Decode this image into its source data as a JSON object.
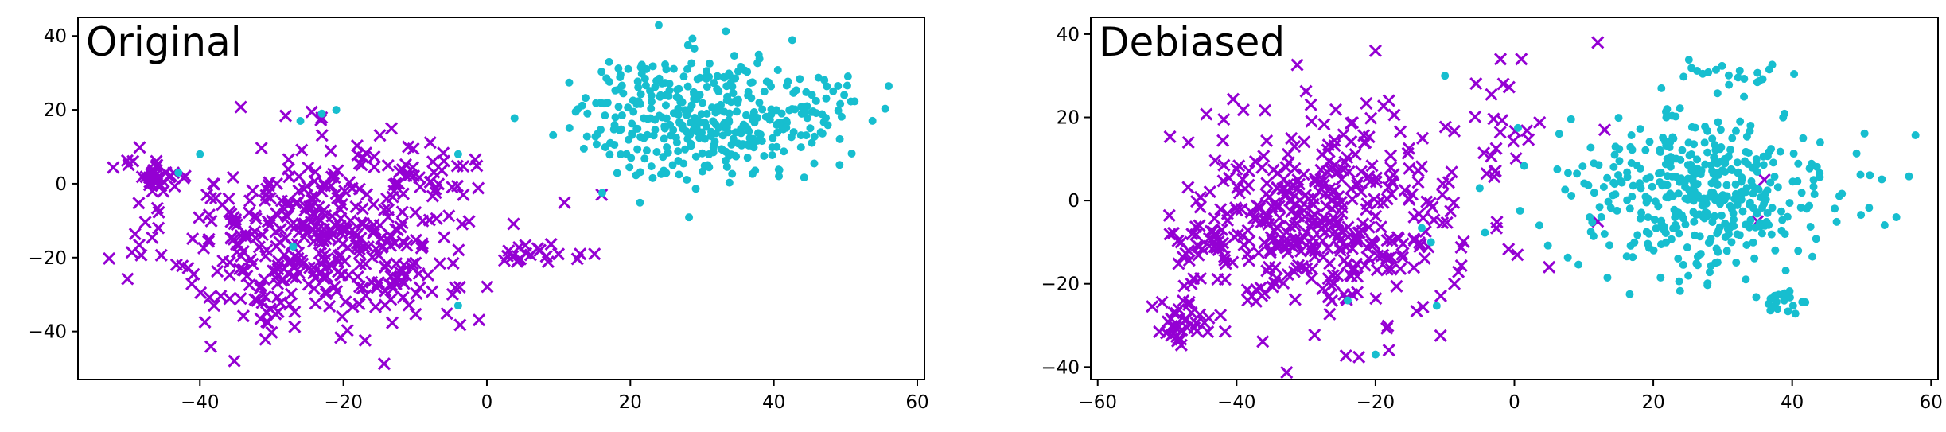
{
  "chart_data": [
    {
      "type": "scatter",
      "title": "Original",
      "xlim": [
        -57,
        61
      ],
      "ylim": [
        -53,
        45
      ],
      "xticks": [
        -40,
        -20,
        0,
        20,
        40,
        60
      ],
      "yticks": [
        -40,
        -20,
        0,
        20,
        40
      ],
      "xtick_labels": [
        "−40",
        "−20",
        "0",
        "20",
        "40",
        "60"
      ],
      "ytick_labels": [
        "−40",
        "−20",
        "0",
        "20",
        "40"
      ],
      "grid": false,
      "series": [
        {
          "marker": "x",
          "color": "#9400d3",
          "clusters": [
            {
              "center": [
                -23,
                -15
              ],
              "spread": [
                14,
                17
              ],
              "count": 430
            },
            {
              "center": [
                -46,
                2
              ],
              "spread": [
                3,
                3
              ],
              "count": 35
            },
            {
              "center": [
                -8,
                5
              ],
              "spread": [
                5,
                6
              ],
              "count": 25
            },
            {
              "center": [
                6,
                -19
              ],
              "spread": [
                3,
                2
              ],
              "count": 20
            }
          ],
          "points": [
            [
              16,
              -3
            ],
            [
              15,
              -19
            ],
            [
              13,
              -19
            ]
          ]
        },
        {
          "marker": "o",
          "color": "#17becf",
          "clusters": [
            {
              "center": [
                30,
                18
              ],
              "spread": [
                12,
                11
              ],
              "count": 380
            },
            {
              "center": [
                47,
                22
              ],
              "spread": [
                4,
                6
              ],
              "count": 30
            }
          ],
          "points": [
            [
              -26,
              17
            ],
            [
              -23,
              19
            ],
            [
              -21,
              20
            ],
            [
              -40,
              8
            ],
            [
              -27,
              -17
            ],
            [
              -4,
              -33
            ],
            [
              -4,
              8
            ],
            [
              -43,
              3
            ]
          ]
        }
      ]
    },
    {
      "type": "scatter",
      "title": "Debiased",
      "xlim": [
        -61,
        61
      ],
      "ylim": [
        -43,
        44
      ],
      "xticks": [
        -60,
        -40,
        -20,
        0,
        20,
        40,
        60
      ],
      "yticks": [
        -40,
        -20,
        0,
        20,
        40
      ],
      "xtick_labels": [
        "−60",
        "−40",
        "−20",
        "0",
        "20",
        "40",
        "60"
      ],
      "ytick_labels": [
        "−40",
        "−20",
        "0",
        "20",
        "40"
      ],
      "grid": false,
      "series": [
        {
          "marker": "x",
          "color": "#9400d3",
          "clusters": [
            {
              "center": [
                -28,
                -5
              ],
              "spread": [
                13,
                16
              ],
              "count": 430
            },
            {
              "center": [
                -48,
                -30
              ],
              "spread": [
                3,
                4
              ],
              "count": 30
            },
            {
              "center": [
                -44,
                -12
              ],
              "spread": [
                3,
                3
              ],
              "count": 20
            },
            {
              "center": [
                -3,
                17
              ],
              "spread": [
                5,
                9
              ],
              "count": 20
            }
          ],
          "points": [
            [
              12,
              38
            ],
            [
              1,
              34
            ],
            [
              -2,
              34
            ],
            [
              -20,
              36
            ],
            [
              36,
              5
            ],
            [
              35,
              -5
            ],
            [
              13,
              17
            ],
            [
              5,
              -16
            ],
            [
              12,
              -5
            ]
          ]
        },
        {
          "marker": "o",
          "color": "#17becf",
          "clusters": [
            {
              "center": [
                27,
                2
              ],
              "spread": [
                13,
                13
              ],
              "count": 420
            },
            {
              "center": [
                39,
                -25
              ],
              "spread": [
                2,
                2
              ],
              "count": 20
            },
            {
              "center": [
                32,
                29
              ],
              "spread": [
                7,
                4
              ],
              "count": 20
            }
          ],
          "points": [
            [
              55,
              -4
            ],
            [
              -20,
              -37
            ],
            [
              -10,
              30
            ],
            [
              -12,
              -10
            ],
            [
              -5,
              3
            ],
            [
              -24,
              -24
            ]
          ]
        }
      ]
    }
  ]
}
